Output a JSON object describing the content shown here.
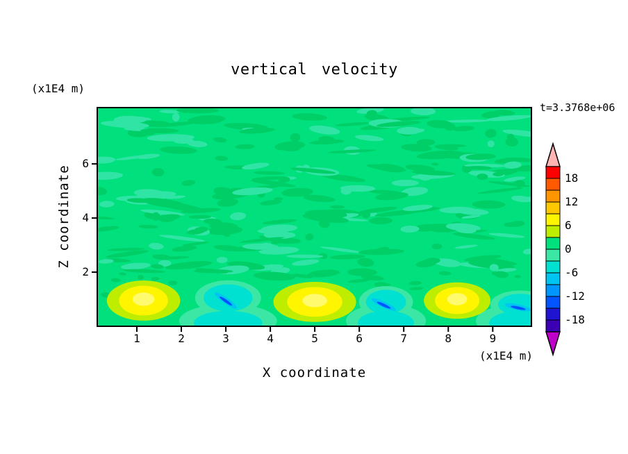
{
  "title": "vertical velocity",
  "time_label": "t=3.3768e+06",
  "axes": {
    "x_label": "X coordinate",
    "y_label": "Z coordinate",
    "x_unit": "(x1E4 m)",
    "y_unit": "(x1E4 m)",
    "x_ticks": [
      "1",
      "2",
      "3",
      "4",
      "5",
      "6",
      "7",
      "8",
      "9"
    ],
    "y_ticks": [
      "2",
      "4",
      "6"
    ],
    "x_range": [
      0.11,
      9.87
    ],
    "y_range": [
      0,
      8.08
    ]
  },
  "colorbar": {
    "labels": [
      "18",
      "12",
      "6",
      "0",
      "-6",
      "-12",
      "-18"
    ],
    "label_values": [
      18,
      12,
      6,
      0,
      -6,
      -12,
      -18
    ],
    "max_level": 21,
    "level_step": 3,
    "band_colors_top_to_bottom": [
      "#FF0000",
      "#FF5A00",
      "#FF9600",
      "#FFC800",
      "#FFF500",
      "#BEED00",
      "#00E07D",
      "#3CE6A5",
      "#00E1D2",
      "#00C4F2",
      "#0096FF",
      "#0055FF",
      "#1E14D2",
      "#3C00B4"
    ],
    "over_arrow_color": "#FFB4B4",
    "under_arrow_color": "#BE00C8"
  },
  "chart_data": {
    "type": "filled_contour",
    "field_name": "vertical velocity",
    "background_color": "#00E07D",
    "texture": {
      "seed": 11,
      "count": 260,
      "colors": [
        "#00CF68",
        "#2FE4A4"
      ]
    },
    "maxima": [
      {
        "x": 1.15,
        "z": 0.95,
        "rx": 0.55,
        "rz": 0.55,
        "peak_value": 8
      },
      {
        "x": 5.0,
        "z": 0.9,
        "rx": 0.62,
        "rz": 0.55,
        "peak_value": 8
      },
      {
        "x": 8.2,
        "z": 0.95,
        "rx": 0.5,
        "rz": 0.5,
        "peak_value": 8
      }
    ],
    "minima": [
      {
        "x": 3.05,
        "z": 1.05,
        "rx": 0.55,
        "rz": 0.5,
        "angle": 35,
        "min_value": -13
      },
      {
        "x": 6.6,
        "z": 0.9,
        "rx": 0.45,
        "rz": 0.45,
        "angle": 25,
        "min_value": -13
      },
      {
        "x": 9.62,
        "z": 0.8,
        "rx": 0.5,
        "rz": 0.4,
        "angle": 12,
        "min_value": -13
      }
    ],
    "feature_colors": {
      "halo": "#BEED00",
      "peak": "#FFF500",
      "peak_core": "#FFFA6E",
      "pale": "#3CE6A5",
      "cyan": "#00E1D2",
      "sky": "#00C4F2",
      "blue": "#0055FF"
    }
  }
}
